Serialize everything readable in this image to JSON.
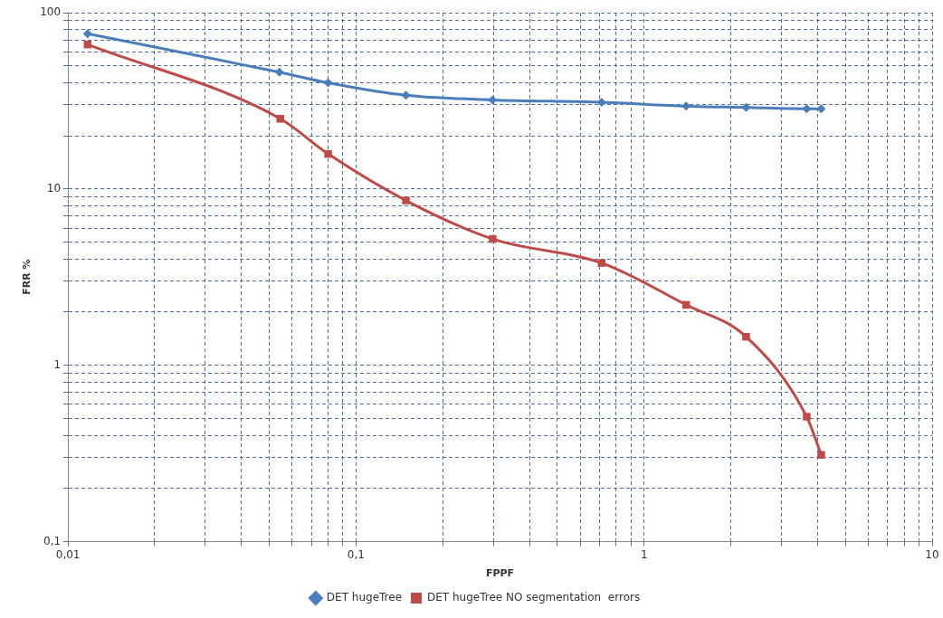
{
  "chart_data": {
    "type": "line",
    "xlabel": "FPPF",
    "ylabel": "FRR %",
    "log": "xy",
    "grid": true,
    "legend": "bottom",
    "line_style": "solid",
    "xlim": [
      0.01,
      10
    ],
    "ylim": [
      0.1,
      100
    ],
    "xticks": [
      {
        "value": 0.01,
        "label": "0,01"
      },
      {
        "value": 0.02,
        "label": null
      },
      {
        "value": 0.03,
        "label": null
      },
      {
        "value": 0.04,
        "label": null
      },
      {
        "value": 0.05,
        "label": null
      },
      {
        "value": 0.06,
        "label": null
      },
      {
        "value": 0.07,
        "label": null
      },
      {
        "value": 0.08,
        "label": null
      },
      {
        "value": 0.09,
        "label": null
      },
      {
        "value": 0.1,
        "label": "0,1"
      },
      {
        "value": 0.2,
        "label": null
      },
      {
        "value": 0.3,
        "label": null
      },
      {
        "value": 0.4,
        "label": null
      },
      {
        "value": 0.5,
        "label": null
      },
      {
        "value": 0.6,
        "label": null
      },
      {
        "value": 0.7,
        "label": null
      },
      {
        "value": 0.8,
        "label": null
      },
      {
        "value": 0.9,
        "label": null
      },
      1,
      {
        "value": 2,
        "label": null
      },
      {
        "value": 3,
        "label": null
      },
      {
        "value": 4,
        "label": null
      },
      {
        "value": 5,
        "label": null
      },
      {
        "value": 6,
        "label": null
      },
      {
        "value": 7,
        "label": null
      },
      {
        "value": 8,
        "label": null
      },
      {
        "value": 9,
        "label": null
      },
      10
    ],
    "yticks": [
      {
        "value": 0.1,
        "label": "0,1"
      },
      {
        "value": 0.2,
        "label": null
      },
      {
        "value": 0.3,
        "label": null
      },
      {
        "value": 0.4,
        "label": null
      },
      {
        "value": 0.5,
        "label": null
      },
      {
        "value": 0.6,
        "label": null
      },
      {
        "value": 0.7,
        "label": null
      },
      {
        "value": 0.8,
        "label": null
      },
      {
        "value": 0.9,
        "label": null
      },
      1,
      {
        "value": 2,
        "label": null
      },
      {
        "value": 3,
        "label": null
      },
      {
        "value": 4,
        "label": null
      },
      {
        "value": 5,
        "label": null
      },
      {
        "value": 6,
        "label": null
      },
      {
        "value": 7,
        "label": null
      },
      {
        "value": 8,
        "label": null
      },
      {
        "value": 9,
        "label": null
      },
      10,
      {
        "value": 20,
        "label": null
      },
      {
        "value": 30,
        "label": null
      },
      {
        "value": 40,
        "label": null
      },
      {
        "value": 50,
        "label": null
      },
      {
        "value": 60,
        "label": null
      },
      {
        "value": 70,
        "label": null
      },
      {
        "value": 80,
        "label": null
      },
      {
        "value": 90,
        "label": null
      },
      100
    ],
    "series": [
      {
        "name": "DET hugeTree",
        "color": "#4a7ebb",
        "marker": "diamond",
        "x": [
          0.0117,
          0.0542,
          0.08,
          0.149,
          0.298,
          0.712,
          1.4,
          2.26,
          3.67,
          4.12
        ],
        "values": [
          76,
          46,
          40,
          34,
          32,
          31,
          29.5,
          29,
          28.5,
          28.5
        ]
      },
      {
        "name": "DET hugeTree NO segmentation  errors",
        "color": "#be4b48",
        "marker": "square",
        "x": [
          0.0117,
          0.0546,
          0.08,
          0.149,
          0.298,
          0.712,
          1.4,
          2.26,
          3.67,
          4.12
        ],
        "values": [
          66,
          25,
          15.8,
          8.6,
          5.2,
          3.8,
          2.2,
          1.45,
          0.51,
          0.31
        ]
      }
    ]
  }
}
